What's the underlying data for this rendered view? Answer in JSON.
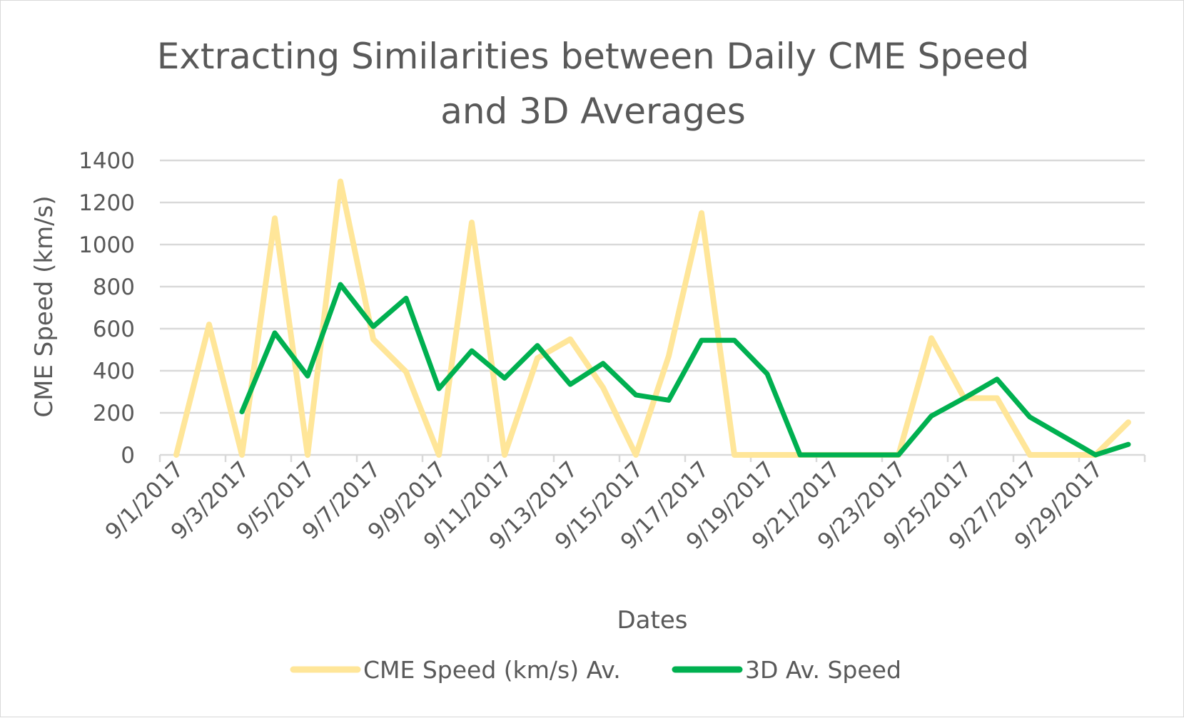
{
  "chart_data": {
    "type": "line",
    "title": "Extracting Similarities between Daily CME Speed and 3D Averages",
    "title_lines": [
      "Extracting Similarities between Daily CME Speed",
      "and 3D Averages"
    ],
    "xlabel": "Dates",
    "ylabel": "CME Speed (km/s)",
    "ylim": [
      0,
      1400
    ],
    "yticks": [
      "0",
      "200",
      "400",
      "600",
      "800",
      "1000",
      "1200",
      "1400"
    ],
    "grid": true,
    "legend_position": "bottom",
    "x": [
      "9/1/2017",
      "9/2/2017",
      "9/3/2017",
      "9/4/2017",
      "9/5/2017",
      "9/6/2017",
      "9/7/2017",
      "9/8/2017",
      "9/9/2017",
      "9/10/2017",
      "9/11/2017",
      "9/12/2017",
      "9/13/2017",
      "9/14/2017",
      "9/15/2017",
      "9/16/2017",
      "9/17/2017",
      "9/18/2017",
      "9/19/2017",
      "9/20/2017",
      "9/21/2017",
      "9/22/2017",
      "9/23/2017",
      "9/24/2017",
      "9/25/2017",
      "9/26/2017",
      "9/27/2017",
      "9/28/2017",
      "9/29/2017",
      "9/30/2017"
    ],
    "xtick_labels": [
      "9/1/2017",
      "9/3/2017",
      "9/5/2017",
      "9/7/2017",
      "9/9/2017",
      "9/11/2017",
      "9/13/2017",
      "9/15/2017",
      "9/17/2017",
      "9/19/2017",
      "9/21/2017",
      "9/23/2017",
      "9/25/2017",
      "9/27/2017",
      "9/29/2017"
    ],
    "series": [
      {
        "name": "CME Speed (km/s) Av.",
        "color": "#ffe699",
        "values": [
          0,
          620,
          0,
          1125,
          0,
          1300,
          550,
          395,
          0,
          1105,
          0,
          460,
          550,
          320,
          0,
          470,
          1150,
          0,
          0,
          0,
          0,
          0,
          0,
          555,
          270,
          270,
          0,
          0,
          0,
          155
        ]
      },
      {
        "name": "3D Av. Speed",
        "color": "#00b050",
        "values": [
          null,
          null,
          205,
          580,
          375,
          810,
          610,
          745,
          315,
          495,
          365,
          520,
          335,
          435,
          285,
          260,
          545,
          545,
          385,
          0,
          0,
          0,
          0,
          185,
          270,
          360,
          180,
          90,
          0,
          50
        ]
      }
    ]
  }
}
